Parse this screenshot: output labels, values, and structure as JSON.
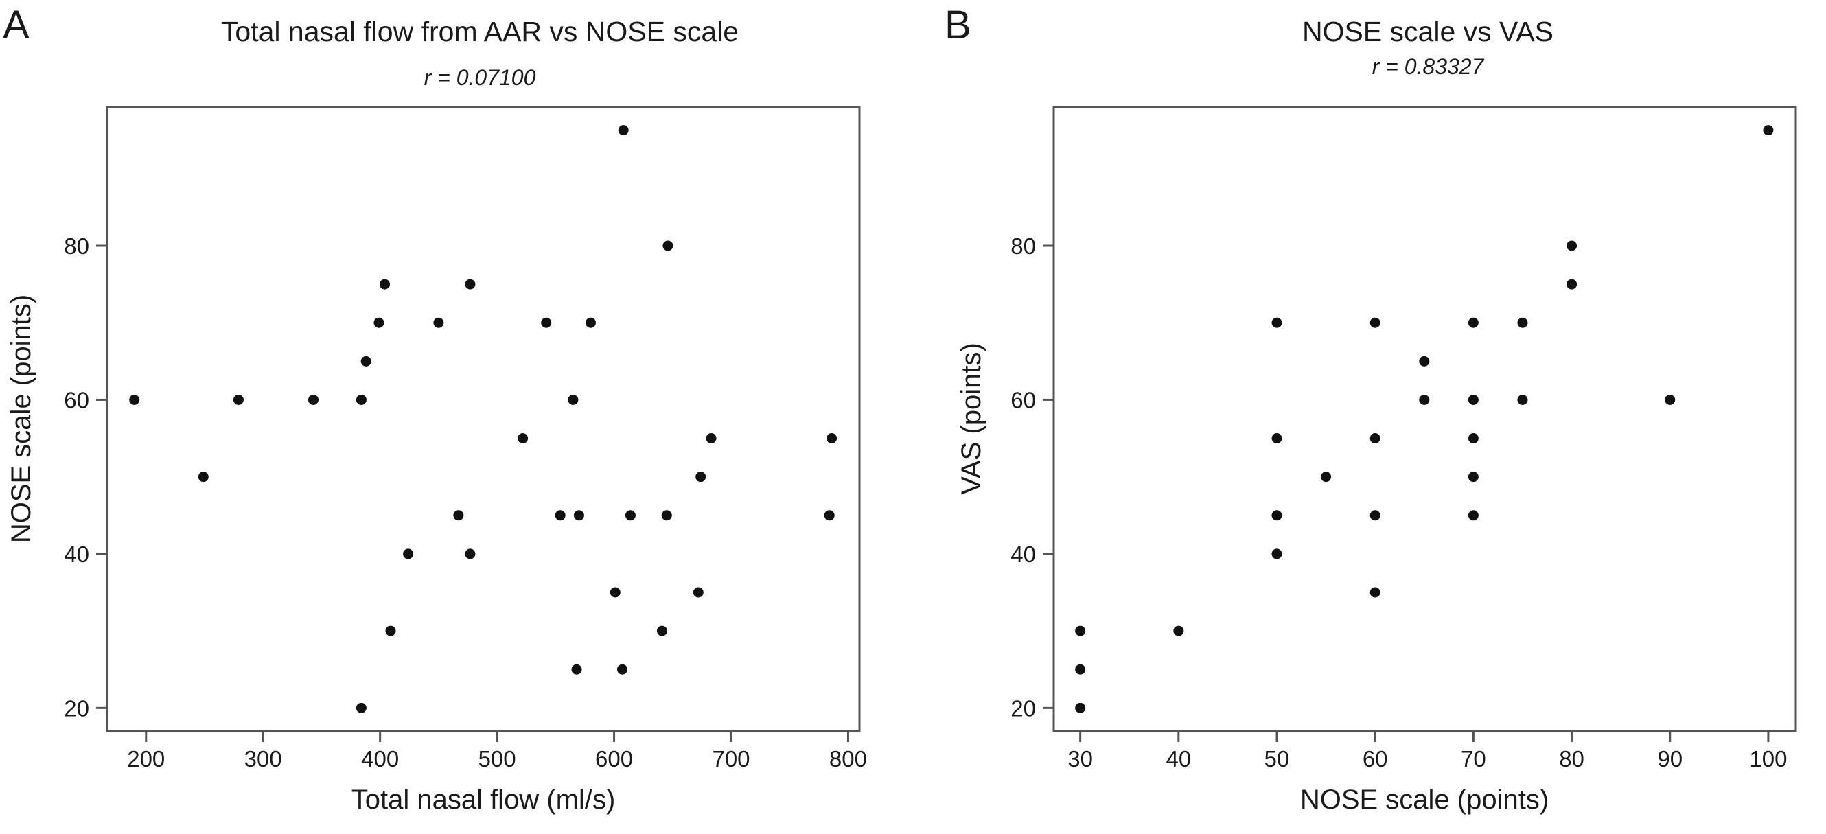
{
  "chart_data": [
    {
      "type": "scatter",
      "panel_label": "A",
      "title": "Total nasal flow from AAR vs NOSE scale",
      "subtitle": "r = 0.07100",
      "xlabel": "Total nasal flow (ml/s)",
      "ylabel": "NOSE scale (points)",
      "xlim": [
        166.7,
        809.7
      ],
      "ylim": [
        17,
        98
      ],
      "xticks": [
        200,
        300,
        400,
        500,
        600,
        700,
        800
      ],
      "yticks": [
        20,
        40,
        60,
        80
      ],
      "grid": false,
      "marker_color": "#111111",
      "points": [
        [
          608,
          95
        ],
        [
          646,
          80
        ],
        [
          404,
          75
        ],
        [
          477,
          75
        ],
        [
          399,
          70
        ],
        [
          450,
          70
        ],
        [
          542,
          70
        ],
        [
          580,
          70
        ],
        [
          388,
          65
        ],
        [
          190,
          60
        ],
        [
          279,
          60
        ],
        [
          343,
          60
        ],
        [
          384,
          60
        ],
        [
          565,
          60
        ],
        [
          522,
          55
        ],
        [
          683,
          55
        ],
        [
          786,
          55
        ],
        [
          249,
          50
        ],
        [
          674,
          50
        ],
        [
          467,
          45
        ],
        [
          554,
          45
        ],
        [
          570,
          45
        ],
        [
          614,
          45
        ],
        [
          645,
          45
        ],
        [
          784,
          45
        ],
        [
          424,
          40
        ],
        [
          477,
          40
        ],
        [
          601,
          35
        ],
        [
          672,
          35
        ],
        [
          409,
          30
        ],
        [
          641,
          30
        ],
        [
          568,
          25
        ],
        [
          607,
          25
        ],
        [
          384,
          20
        ]
      ]
    },
    {
      "type": "scatter",
      "panel_label": "B",
      "title": "NOSE scale vs VAS",
      "subtitle": "r = 0.83327",
      "xlabel": "NOSE scale (points)",
      "ylabel": "VAS (points)",
      "xlim": [
        27.3,
        102.8
      ],
      "ylim": [
        17,
        98
      ],
      "xticks": [
        30,
        40,
        50,
        60,
        70,
        80,
        90,
        100
      ],
      "yticks": [
        20,
        40,
        60,
        80
      ],
      "grid": false,
      "marker_color": "#111111",
      "points": [
        [
          100,
          95
        ],
        [
          80,
          80
        ],
        [
          80,
          75
        ],
        [
          50,
          70
        ],
        [
          60,
          70
        ],
        [
          70,
          70
        ],
        [
          75,
          70
        ],
        [
          65,
          65
        ],
        [
          65,
          60
        ],
        [
          70,
          60
        ],
        [
          75,
          60
        ],
        [
          90,
          60
        ],
        [
          50,
          55
        ],
        [
          60,
          55
        ],
        [
          70,
          55
        ],
        [
          55,
          50
        ],
        [
          70,
          50
        ],
        [
          50,
          45
        ],
        [
          60,
          45
        ],
        [
          70,
          45
        ],
        [
          50,
          40
        ],
        [
          60,
          35
        ],
        [
          30,
          30
        ],
        [
          40,
          30
        ],
        [
          30,
          25
        ],
        [
          30,
          20
        ]
      ]
    }
  ]
}
